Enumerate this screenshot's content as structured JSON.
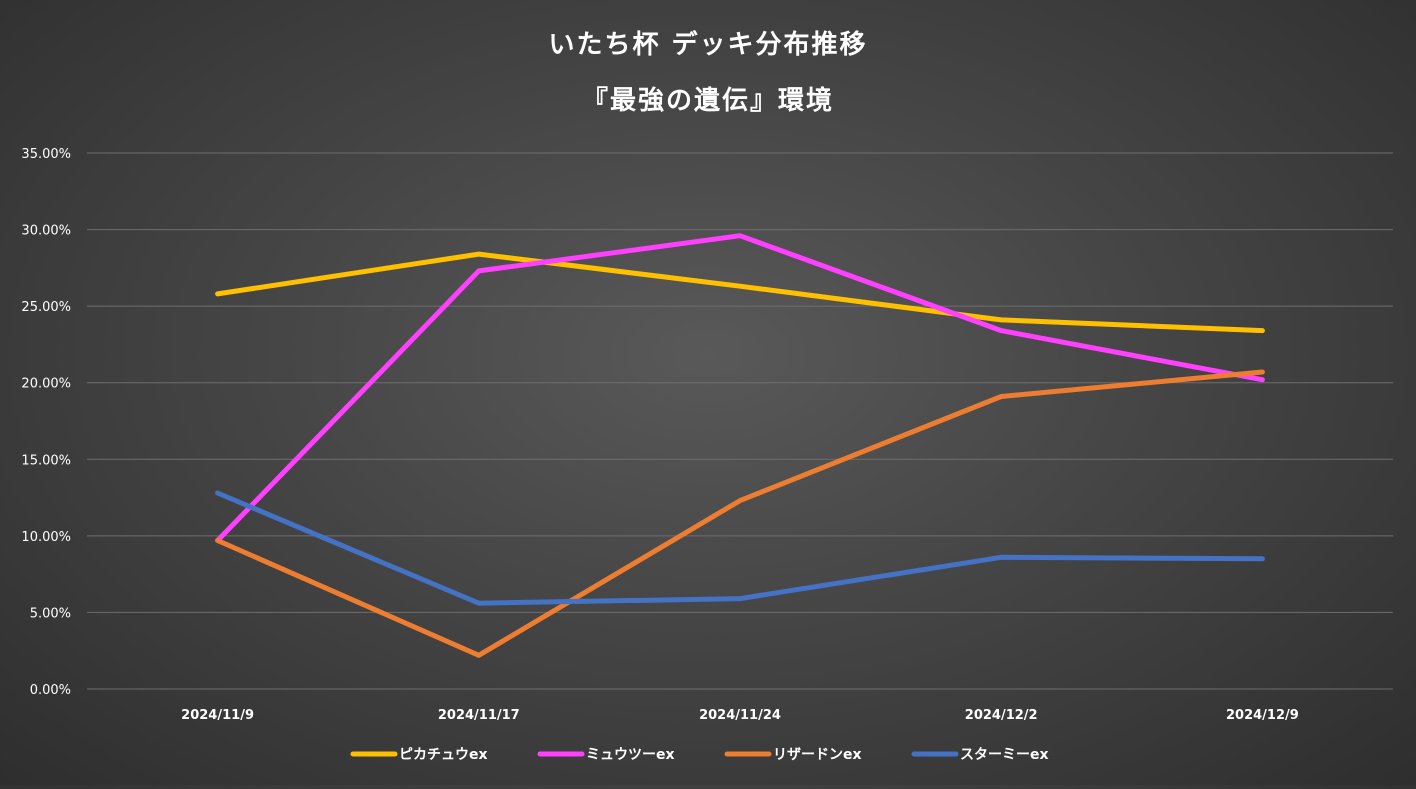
{
  "chart_data": {
    "type": "line",
    "title": "いたち杯 デッキ分布推移",
    "subtitle": "『最強の遺伝』環境",
    "categories": [
      "2024/11/9",
      "2024/11/17",
      "2024/11/24",
      "2024/12/2",
      "2024/12/9"
    ],
    "y_ticks": [
      "0.00%",
      "5.00%",
      "10.00%",
      "15.00%",
      "20.00%",
      "25.00%",
      "30.00%",
      "35.00%"
    ],
    "ylim": [
      0,
      35
    ],
    "grid": true,
    "legend_position": "bottom",
    "series": [
      {
        "name": "ピカチュウex",
        "color": "#FFC000",
        "values": [
          25.8,
          28.4,
          26.3,
          24.1,
          23.4
        ]
      },
      {
        "name": "ミュウツーex",
        "color": "#FF40FF",
        "values": [
          9.7,
          27.3,
          29.6,
          23.4,
          20.2
        ]
      },
      {
        "name": "リザードンex",
        "color": "#ED7D31",
        "values": [
          9.7,
          2.2,
          12.3,
          19.1,
          20.7
        ]
      },
      {
        "name": "スターミーex",
        "color": "#4472C4",
        "values": [
          12.8,
          5.6,
          5.9,
          8.6,
          8.5
        ]
      }
    ]
  }
}
